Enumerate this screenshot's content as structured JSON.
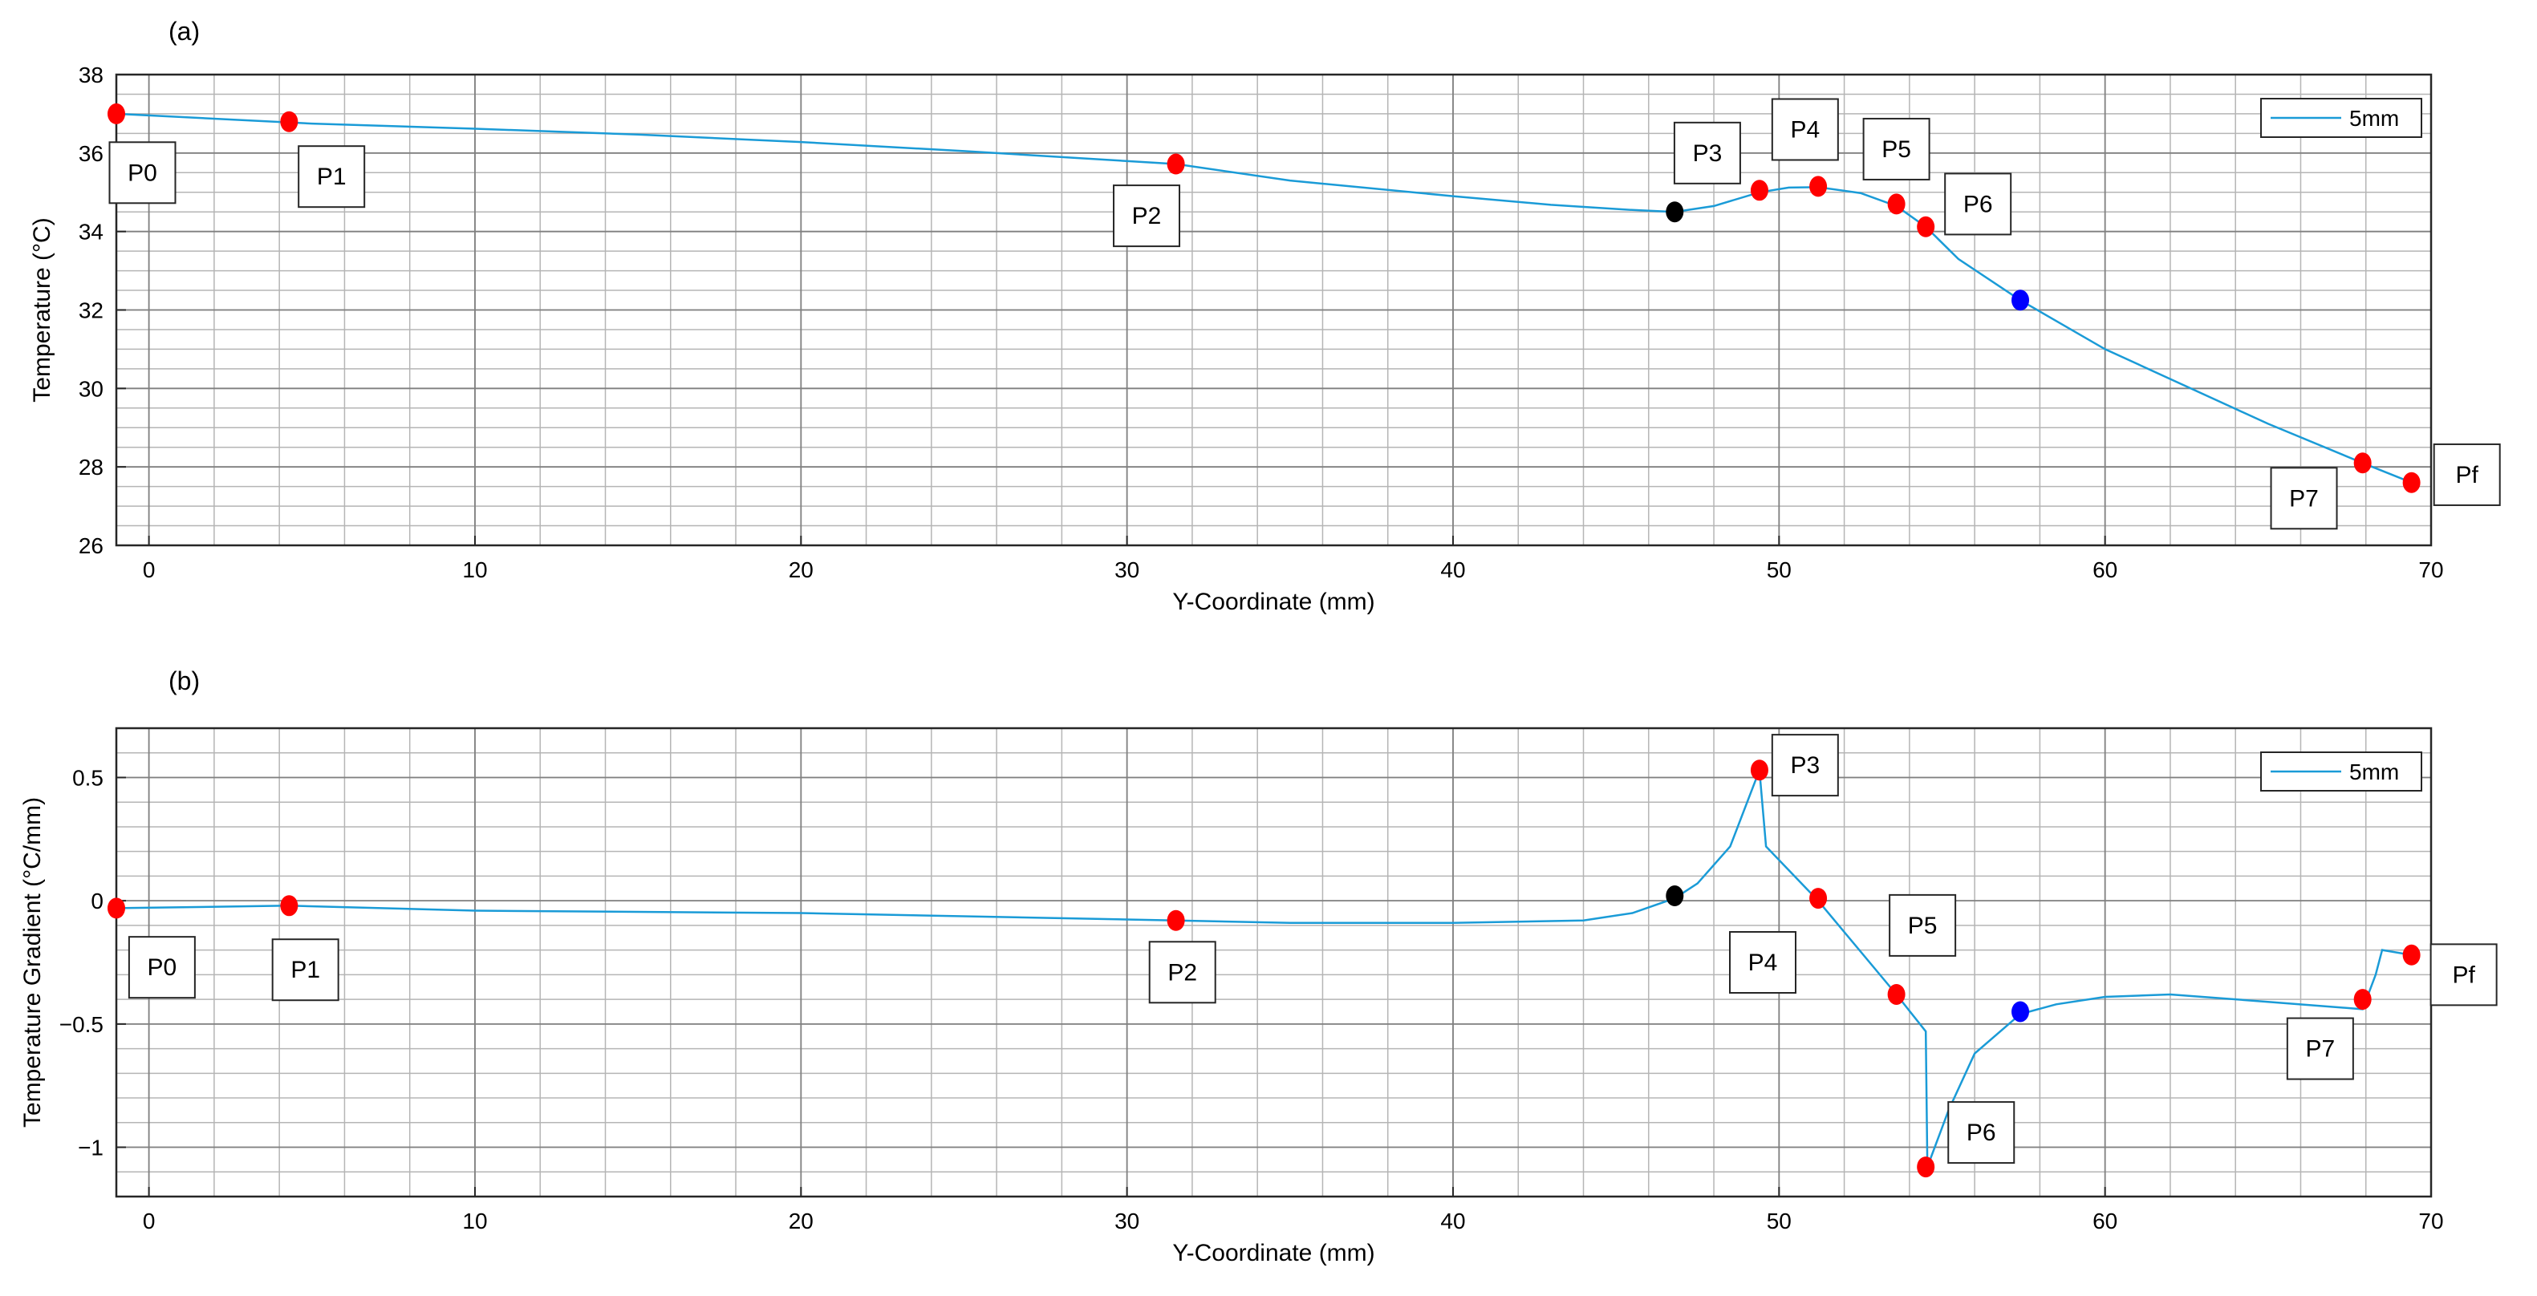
{
  "chart_data": [
    {
      "panel": "(a)",
      "type": "line",
      "xlabel": "Y-Coordinate (mm)",
      "ylabel": "Temperature (°C)",
      "xlim": [
        -1,
        70
      ],
      "ylim": [
        26,
        38
      ],
      "xticks": [
        0,
        10,
        20,
        30,
        40,
        50,
        60,
        70
      ],
      "yticks": [
        26,
        28,
        30,
        32,
        34,
        36,
        38
      ],
      "xminor_step": 2,
      "yminor_step": 0.5,
      "grid": true,
      "legend": {
        "position": "top-right",
        "entries": [
          "5mm"
        ]
      },
      "series": [
        {
          "name": "5mm",
          "color": "#1a9bd7",
          "x": [
            -1,
            5,
            10,
            15,
            20,
            25,
            31.5,
            35,
            40,
            43,
            45.5,
            46.8,
            48,
            49.4,
            50.3,
            51.2,
            52.5,
            53.6,
            54.5,
            55.5,
            57.4,
            60,
            65,
            67.9,
            69.4
          ],
          "y": [
            37.0,
            36.75,
            36.62,
            36.47,
            36.28,
            36.05,
            35.72,
            35.3,
            34.9,
            34.68,
            34.55,
            34.5,
            34.65,
            35.0,
            35.12,
            35.13,
            34.98,
            34.65,
            34.12,
            33.3,
            32.25,
            31.0,
            29.1,
            28.1,
            27.6
          ]
        }
      ],
      "markers": [
        {
          "x": -1,
          "y": 37.0,
          "color": "#ff0000"
        },
        {
          "x": 4.3,
          "y": 36.8,
          "color": "#ff0000"
        },
        {
          "x": 31.5,
          "y": 35.72,
          "color": "#ff0000"
        },
        {
          "x": 46.8,
          "y": 34.5,
          "color": "#000000"
        },
        {
          "x": 49.4,
          "y": 35.05,
          "color": "#ff0000"
        },
        {
          "x": 51.2,
          "y": 35.15,
          "color": "#ff0000"
        },
        {
          "x": 53.6,
          "y": 34.7,
          "color": "#ff0000"
        },
        {
          "x": 54.5,
          "y": 34.12,
          "color": "#ff0000"
        },
        {
          "x": 57.4,
          "y": 32.25,
          "color": "#0000ff"
        },
        {
          "x": 67.9,
          "y": 28.1,
          "color": "#ff0000"
        },
        {
          "x": 69.4,
          "y": 27.6,
          "color": "#ff0000"
        }
      ],
      "annotations": [
        {
          "text": "P0",
          "x": -0.2,
          "y": 35.5
        },
        {
          "text": "P1",
          "x": 5.6,
          "y": 35.4
        },
        {
          "text": "P2",
          "x": 30.6,
          "y": 34.4
        },
        {
          "text": "P3",
          "x": 47.8,
          "y": 36.0
        },
        {
          "text": "P4",
          "x": 50.8,
          "y": 36.6
        },
        {
          "text": "P5",
          "x": 53.6,
          "y": 36.1
        },
        {
          "text": "P6",
          "x": 56.1,
          "y": 34.7
        },
        {
          "text": "P7",
          "x": 66.1,
          "y": 27.2
        },
        {
          "text": "Pf",
          "x": 71.1,
          "y": 27.8
        }
      ]
    },
    {
      "panel": "(b)",
      "type": "line",
      "xlabel": "Y-Coordinate (mm)",
      "ylabel": "Temperature Gradient (°C/mm)",
      "xlim": [
        -1,
        70
      ],
      "ylim": [
        -1.2,
        0.7
      ],
      "xticks": [
        0,
        10,
        20,
        30,
        40,
        50,
        60,
        70
      ],
      "yticks": [
        -1,
        -0.5,
        0,
        0.5
      ],
      "yticklabels": [
        "−1",
        "−0.5",
        "0",
        "0.5"
      ],
      "xminor_step": 2,
      "yminor_step": 0.1,
      "grid": true,
      "legend": {
        "position": "top-right",
        "entries": [
          "5mm"
        ]
      },
      "series": [
        {
          "name": "5mm",
          "color": "#1a9bd7",
          "x": [
            -1,
            4.3,
            10,
            20,
            31.5,
            35,
            40,
            44,
            45.5,
            46.8,
            47.5,
            48.5,
            49.4,
            49.6,
            51.2,
            53.6,
            54.5,
            54.55,
            55.2,
            56,
            57.4,
            58.5,
            60,
            62,
            65,
            67.9,
            68.3,
            68.5,
            69.4
          ],
          "y": [
            -0.03,
            -0.02,
            -0.04,
            -0.05,
            -0.08,
            -0.09,
            -0.09,
            -0.08,
            -0.05,
            0.01,
            0.07,
            0.22,
            0.53,
            0.22,
            0.0,
            -0.38,
            -0.53,
            -1.08,
            -0.85,
            -0.62,
            -0.46,
            -0.42,
            -0.39,
            -0.38,
            -0.41,
            -0.44,
            -0.3,
            -0.2,
            -0.22
          ]
        }
      ],
      "markers": [
        {
          "x": -1,
          "y": -0.03,
          "color": "#ff0000"
        },
        {
          "x": 4.3,
          "y": -0.02,
          "color": "#ff0000"
        },
        {
          "x": 31.5,
          "y": -0.08,
          "color": "#ff0000"
        },
        {
          "x": 46.8,
          "y": 0.02,
          "color": "#000000"
        },
        {
          "x": 49.4,
          "y": 0.53,
          "color": "#ff0000"
        },
        {
          "x": 51.2,
          "y": 0.01,
          "color": "#ff0000"
        },
        {
          "x": 53.6,
          "y": -0.38,
          "color": "#ff0000"
        },
        {
          "x": 54.5,
          "y": -1.08,
          "color": "#ff0000"
        },
        {
          "x": 57.4,
          "y": -0.45,
          "color": "#0000ff"
        },
        {
          "x": 67.9,
          "y": -0.4,
          "color": "#ff0000"
        },
        {
          "x": 69.4,
          "y": -0.22,
          "color": "#ff0000"
        }
      ],
      "annotations": [
        {
          "text": "P0",
          "x": 0.4,
          "y": -0.27
        },
        {
          "text": "P1",
          "x": 4.8,
          "y": -0.28
        },
        {
          "text": "P2",
          "x": 31.7,
          "y": -0.29
        },
        {
          "text": "P3",
          "x": 50.8,
          "y": 0.55
        },
        {
          "text": "P4",
          "x": 49.5,
          "y": -0.25
        },
        {
          "text": "P5",
          "x": 54.4,
          "y": -0.1
        },
        {
          "text": "P6",
          "x": 56.2,
          "y": -0.94
        },
        {
          "text": "P7",
          "x": 66.6,
          "y": -0.6
        },
        {
          "text": "Pf",
          "x": 71.0,
          "y": -0.3
        }
      ]
    }
  ]
}
